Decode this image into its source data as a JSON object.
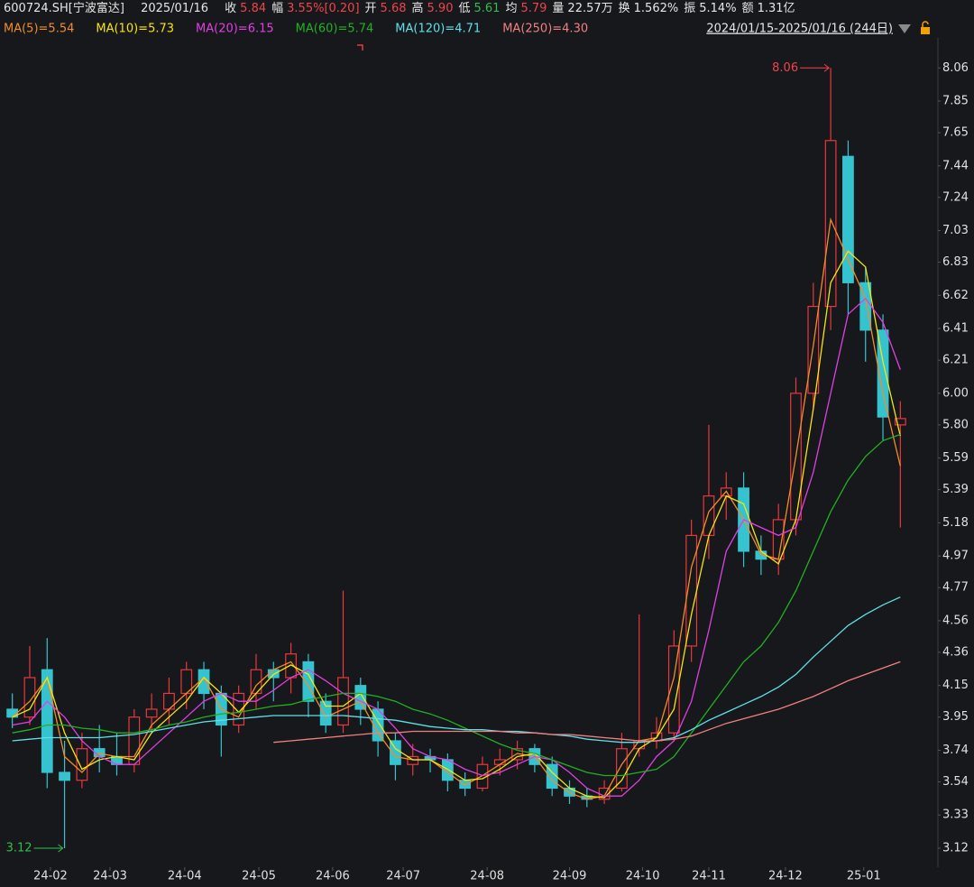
{
  "chart_data": {
    "type": "candlestick",
    "quote": {
      "code": "600724.SH[宁波富达]",
      "date": "2025/01/16",
      "items": [
        {
          "label": "收",
          "value": "5.84",
          "color": "#f0444a"
        },
        {
          "label": "幅",
          "value": "3.55%[0.20]",
          "color": "#f0444a"
        },
        {
          "label": "开",
          "value": "5.68",
          "color": "#f0444a"
        },
        {
          "label": "高",
          "value": "5.90",
          "color": "#f0444a"
        },
        {
          "label": "低",
          "value": "5.61",
          "color": "#2fbf4a"
        },
        {
          "label": "均",
          "value": "5.79",
          "color": "#f0444a"
        },
        {
          "label": "量",
          "value": "22.57万",
          "color": "#e6e6e6"
        },
        {
          "label": "换",
          "value": "1.562%",
          "color": "#e6e6e6"
        },
        {
          "label": "振",
          "value": "5.14%",
          "color": "#e6e6e6"
        },
        {
          "label": "额",
          "value": "1.31亿",
          "color": "#e6e6e6"
        }
      ]
    },
    "range_label": "2024/01/15-2025/01/16 (244日)",
    "up_color": "#e8383d",
    "down_color": "#36c3d0",
    "x": [
      0.5,
      1.5,
      2.5,
      3.5,
      4.5,
      5.5,
      6.5,
      7.5,
      8.5,
      9.5,
      10.5,
      11.5,
      12.5,
      13.5,
      14.5,
      15.5,
      16.5,
      17.5,
      18.5,
      19.5,
      20.5,
      21.5,
      22.5,
      23.5,
      24.5,
      25.5,
      26.5,
      27.5,
      28.5,
      29.5,
      30.5,
      31.5,
      32.5,
      33.5,
      34.5,
      35.5,
      36.5,
      37.5,
      38.5,
      39.5,
      40.5,
      41.5,
      42.5,
      43.5,
      44.5,
      45.5,
      46.5,
      47.5,
      48.5,
      49.5,
      50.5,
      51.5
    ],
    "open": [
      4.0,
      3.95,
      4.25,
      3.6,
      3.55,
      3.75,
      3.7,
      3.65,
      3.95,
      4.0,
      4.1,
      4.25,
      4.1,
      3.9,
      4.1,
      4.25,
      4.2,
      4.3,
      4.05,
      3.9,
      4.15,
      4.0,
      3.8,
      3.65,
      3.7,
      3.68,
      3.55,
      3.5,
      3.65,
      3.68,
      3.75,
      3.65,
      3.5,
      3.45,
      3.43,
      3.5,
      3.75,
      3.8,
      3.85,
      4.4,
      5.1,
      5.35,
      5.4,
      5.0,
      4.95,
      5.2,
      6.0,
      6.55,
      7.5,
      6.7,
      6.4,
      5.8
    ],
    "high": [
      4.1,
      4.4,
      4.45,
      3.8,
      3.85,
      3.9,
      3.85,
      4.0,
      4.1,
      4.2,
      4.3,
      4.3,
      4.15,
      4.15,
      4.35,
      4.3,
      4.42,
      4.35,
      4.1,
      4.75,
      4.2,
      4.05,
      3.85,
      3.78,
      3.75,
      3.72,
      3.6,
      3.7,
      3.75,
      3.8,
      3.78,
      3.7,
      3.55,
      3.5,
      3.55,
      3.85,
      4.6,
      3.95,
      4.5,
      5.2,
      5.8,
      5.5,
      5.5,
      5.1,
      5.3,
      6.1,
      6.7,
      8.06,
      7.6,
      6.8,
      6.5,
      5.95
    ],
    "low": [
      3.88,
      3.9,
      3.5,
      3.12,
      3.5,
      3.6,
      3.58,
      3.6,
      3.85,
      3.9,
      4.0,
      4.0,
      3.7,
      3.85,
      4.0,
      4.05,
      4.1,
      3.95,
      3.85,
      3.85,
      3.9,
      3.7,
      3.55,
      3.58,
      3.6,
      3.48,
      3.45,
      3.48,
      3.58,
      3.62,
      3.6,
      3.45,
      3.4,
      3.38,
      3.4,
      3.48,
      3.7,
      3.75,
      3.8,
      4.3,
      4.95,
      5.2,
      4.9,
      4.85,
      4.85,
      5.1,
      5.9,
      6.4,
      6.5,
      6.2,
      5.7,
      5.15
    ],
    "close": [
      3.95,
      4.2,
      3.6,
      3.55,
      3.75,
      3.7,
      3.65,
      3.95,
      4.0,
      4.1,
      4.25,
      4.1,
      3.9,
      4.1,
      4.25,
      4.2,
      4.35,
      4.05,
      3.9,
      4.2,
      4.0,
      3.8,
      3.65,
      3.7,
      3.68,
      3.55,
      3.5,
      3.65,
      3.68,
      3.75,
      3.65,
      3.5,
      3.45,
      3.43,
      3.5,
      3.75,
      3.8,
      3.85,
      4.4,
      5.1,
      5.35,
      5.4,
      5.0,
      4.95,
      5.2,
      6.0,
      6.55,
      7.6,
      6.7,
      6.4,
      5.85,
      5.84
    ],
    "series": [
      {
        "name": "MA(5)=5.54",
        "color": "#f28c28",
        "values": [
          3.95,
          4.05,
          4.2,
          3.7,
          3.6,
          3.72,
          3.7,
          3.7,
          3.9,
          4.0,
          4.1,
          4.2,
          4.0,
          3.95,
          4.15,
          4.25,
          4.3,
          4.15,
          3.95,
          4.0,
          4.05,
          3.85,
          3.7,
          3.68,
          3.68,
          3.6,
          3.52,
          3.58,
          3.65,
          3.72,
          3.7,
          3.55,
          3.47,
          3.43,
          3.45,
          3.65,
          3.8,
          3.82,
          4.2,
          4.9,
          5.25,
          5.38,
          5.2,
          4.98,
          4.95,
          5.6,
          6.3,
          7.1,
          6.85,
          6.6,
          6.0,
          5.54
        ]
      },
      {
        "name": "MA(10)=5.73",
        "color": "#f5e50b",
        "values": [
          3.95,
          4.0,
          4.2,
          3.85,
          3.62,
          3.68,
          3.7,
          3.68,
          3.85,
          3.95,
          4.05,
          4.2,
          4.1,
          3.98,
          4.1,
          4.22,
          4.28,
          4.22,
          4.02,
          4.02,
          4.1,
          3.92,
          3.75,
          3.68,
          3.68,
          3.62,
          3.55,
          3.56,
          3.62,
          3.7,
          3.72,
          3.6,
          3.5,
          3.45,
          3.44,
          3.55,
          3.75,
          3.82,
          4.0,
          4.6,
          5.1,
          5.35,
          5.3,
          5.0,
          4.92,
          5.2,
          5.9,
          6.7,
          6.9,
          6.8,
          6.2,
          5.73
        ]
      },
      {
        "name": "MA(20)=6.15",
        "color": "#e040e0",
        "values": [
          3.9,
          3.92,
          4.05,
          3.95,
          3.8,
          3.7,
          3.65,
          3.65,
          3.75,
          3.85,
          3.95,
          4.05,
          4.1,
          4.05,
          4.05,
          4.12,
          4.2,
          4.25,
          4.18,
          4.1,
          4.05,
          4.0,
          3.88,
          3.75,
          3.7,
          3.68,
          3.62,
          3.58,
          3.6,
          3.65,
          3.7,
          3.68,
          3.6,
          3.5,
          3.45,
          3.45,
          3.55,
          3.7,
          3.8,
          4.05,
          4.5,
          5.0,
          5.2,
          5.15,
          5.1,
          5.15,
          5.5,
          6.0,
          6.5,
          6.6,
          6.45,
          6.15
        ]
      },
      {
        "name": "MA(60)=5.74",
        "color": "#22b022",
        "values": [
          3.85,
          3.87,
          3.9,
          3.9,
          3.88,
          3.87,
          3.85,
          3.85,
          3.87,
          3.9,
          3.92,
          3.95,
          3.97,
          3.98,
          4.0,
          4.02,
          4.03,
          4.06,
          4.08,
          4.1,
          4.1,
          4.08,
          4.05,
          4.0,
          3.97,
          3.93,
          3.88,
          3.83,
          3.78,
          3.74,
          3.72,
          3.68,
          3.64,
          3.6,
          3.58,
          3.58,
          3.6,
          3.62,
          3.7,
          3.85,
          4.0,
          4.15,
          4.3,
          4.4,
          4.55,
          4.75,
          5.0,
          5.25,
          5.45,
          5.6,
          5.7,
          5.74
        ]
      },
      {
        "name": "MA(120)=4.71",
        "color": "#5ee0e6",
        "values": [
          3.8,
          3.81,
          3.82,
          3.82,
          3.82,
          3.82,
          3.83,
          3.84,
          3.86,
          3.88,
          3.9,
          3.92,
          3.93,
          3.94,
          3.95,
          3.96,
          3.96,
          3.96,
          3.96,
          3.96,
          3.95,
          3.94,
          3.93,
          3.91,
          3.89,
          3.88,
          3.87,
          3.87,
          3.86,
          3.86,
          3.85,
          3.84,
          3.83,
          3.81,
          3.8,
          3.79,
          3.79,
          3.8,
          3.82,
          3.87,
          3.93,
          3.98,
          4.03,
          4.08,
          4.14,
          4.22,
          4.33,
          4.43,
          4.53,
          4.6,
          4.66,
          4.71
        ]
      },
      {
        "name": "MA(250)=4.30",
        "color": "#f08080",
        "values": [
          null,
          null,
          null,
          null,
          null,
          null,
          null,
          null,
          null,
          null,
          null,
          null,
          null,
          null,
          null,
          3.79,
          3.8,
          3.81,
          3.82,
          3.83,
          3.84,
          3.85,
          3.85,
          3.86,
          3.86,
          3.86,
          3.86,
          3.86,
          3.86,
          3.85,
          3.85,
          3.84,
          3.84,
          3.83,
          3.82,
          3.81,
          3.8,
          3.8,
          3.81,
          3.83,
          3.87,
          3.91,
          3.94,
          3.97,
          4.0,
          4.04,
          4.08,
          4.13,
          4.18,
          4.22,
          4.26,
          4.3
        ]
      }
    ],
    "annotations": [
      {
        "value": 8.06,
        "x": 47.5,
        "color": "#f0444a",
        "side": "left"
      },
      {
        "value": 3.12,
        "x": 3.5,
        "color": "#2fbf4a",
        "side": "left"
      }
    ],
    "xlim": [
      0,
      52
    ],
    "ylim": [
      3.0,
      8.25
    ],
    "xticks": [
      {
        "value": 2.69,
        "label": "24-02"
      },
      {
        "value": 6.11,
        "label": "24-03"
      },
      {
        "value": 10.4,
        "label": "24-04"
      },
      {
        "value": 14.66,
        "label": "24-05"
      },
      {
        "value": 18.9,
        "label": "24-06"
      },
      {
        "value": 22.95,
        "label": "24-07"
      },
      {
        "value": 27.77,
        "label": "24-08"
      },
      {
        "value": 32.5,
        "label": "24-09"
      },
      {
        "value": 36.7,
        "label": "24-10"
      },
      {
        "value": 40.5,
        "label": "24-11"
      },
      {
        "value": 44.9,
        "label": "24-12"
      },
      {
        "value": 49.4,
        "label": "25-01"
      }
    ],
    "yticks": [
      8.06,
      7.85,
      7.65,
      7.44,
      7.24,
      7.03,
      6.83,
      6.62,
      6.41,
      6.21,
      {
        "value": 6.0,
        "label": "6.00"
      },
      {
        "value": 5.8,
        "label": "5.80"
      },
      5.59,
      5.39,
      5.18,
      4.97,
      4.77,
      4.56,
      4.36,
      4.15,
      3.95,
      3.74,
      3.54,
      3.33,
      3.12
    ]
  }
}
